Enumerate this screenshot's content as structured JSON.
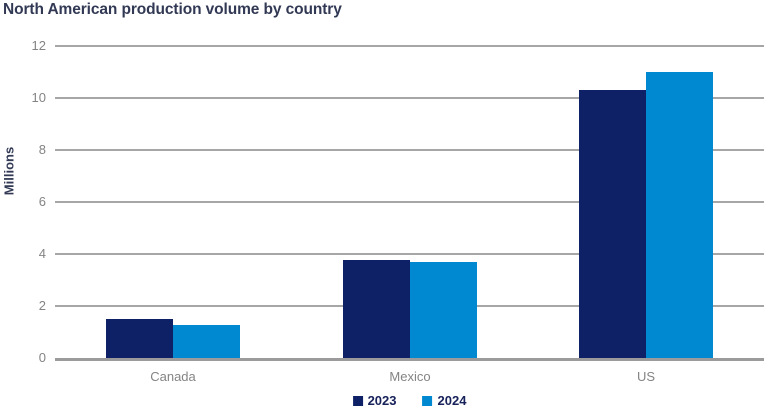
{
  "chart_data": {
    "type": "bar",
    "title": "North American production volume by country",
    "xlabel": "",
    "ylabel": "Millions",
    "categories": [
      "Canada",
      "Mexico",
      "US"
    ],
    "series": [
      {
        "name": "2023",
        "color": "#0E2166",
        "values": [
          1.5,
          3.75,
          10.3
        ]
      },
      {
        "name": "2024",
        "color": "#0089D1",
        "values": [
          1.25,
          3.7,
          11.0
        ]
      }
    ],
    "ylim": [
      0,
      12
    ],
    "yticks": [
      0,
      2,
      4,
      6,
      8,
      10,
      12
    ],
    "grid": true,
    "legend_position": "bottom"
  },
  "colors": {
    "background": "#FFFFFF",
    "title_text": "#323954",
    "y_axis_title_text": "#323954",
    "legend_text": "#17215A",
    "axis_tick_text": "#848484",
    "gridline": "#A6A6A6",
    "axis_line": "#9B9B9B"
  }
}
